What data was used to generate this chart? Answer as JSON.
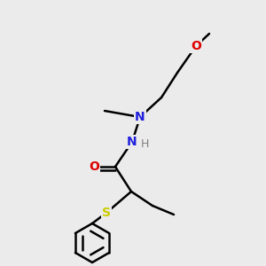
{
  "background_color": "#ebebeb",
  "atom_colors": {
    "C": "#000000",
    "N": "#2020dd",
    "O": "#dd0000",
    "S": "#cccc00",
    "H": "#808080"
  },
  "bond_color": "#000000",
  "bond_width": 1.8,
  "figsize": [
    3.0,
    3.0
  ],
  "dpi": 100
}
